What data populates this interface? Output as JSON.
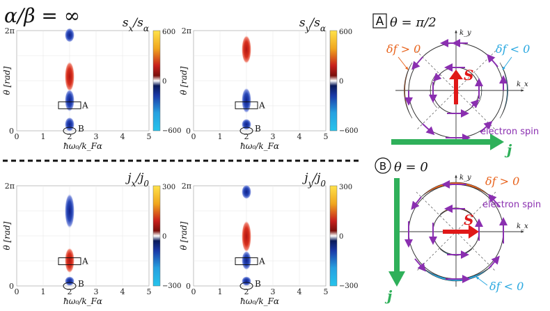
{
  "header": {
    "ratio_label": "α/β = ∞"
  },
  "colors": {
    "red": "#c8201c",
    "dark_red": "#7a0f0c",
    "orange": "#f0a61e",
    "yellow": "#ffe24a",
    "blue": "#1a3aa8",
    "navy": "#0a1a5a",
    "cyan": "#26c4ec",
    "orange_region": "#e8641e",
    "blue_region": "#2aa8e0",
    "purple": "#8a2fb0",
    "green": "#2fb05a",
    "spin_red": "#e01818"
  },
  "axes": {
    "theta_label": "θ [rad]",
    "x_label": "ħω₀/k_Fα",
    "x_ticks": [
      "0",
      "1",
      "2",
      "3",
      "4",
      "5"
    ],
    "y_ticks": [
      "0",
      "2π"
    ],
    "marker_a": "A",
    "marker_b": "B"
  },
  "chart_data": [
    {
      "type": "heatmap",
      "id": "sx",
      "title": "s_x/s_α",
      "title_main": "s",
      "title_sub": "x",
      "denom_main": "s",
      "denom_sub": "α",
      "xlim": [
        0,
        5
      ],
      "ylim": [
        0,
        6.2832
      ],
      "colorbar": {
        "min": -600,
        "max": 600,
        "ticks": [
          "600",
          "0",
          "−600"
        ]
      },
      "lobes": [
        {
          "y": 6.0,
          "half_height": 0.45,
          "sign": -1
        },
        {
          "y": 3.4,
          "half_height": 0.95,
          "sign": 1
        },
        {
          "y": 1.9,
          "half_height": 0.7,
          "sign": -1
        },
        {
          "y": 0.4,
          "half_height": 0.45,
          "sign": -1
        }
      ]
    },
    {
      "type": "heatmap",
      "id": "sy",
      "title": "s_y/s_α",
      "title_main": "s",
      "title_sub": "y",
      "denom_main": "s",
      "denom_sub": "α",
      "xlim": [
        0,
        5
      ],
      "ylim": [
        0,
        6.2832
      ],
      "colorbar": {
        "min": -600,
        "max": 600,
        "ticks": [
          "600",
          "0",
          "−600"
        ]
      },
      "lobes": [
        {
          "y": 5.1,
          "half_height": 0.9,
          "sign": 1
        },
        {
          "y": 1.9,
          "half_height": 0.8,
          "sign": -1
        },
        {
          "y": 0.4,
          "half_height": 0.35,
          "sign": -1
        }
      ]
    },
    {
      "type": "heatmap",
      "id": "jx",
      "title": "j_x/j_0",
      "title_main": "j",
      "title_sub": "x",
      "denom_main": "j",
      "denom_sub": "0",
      "xlim": [
        0,
        5
      ],
      "ylim": [
        0,
        6.2832
      ],
      "colorbar": {
        "min": -300,
        "max": 300,
        "ticks": [
          "300",
          "0",
          "−300"
        ]
      },
      "lobes": [
        {
          "y": 4.7,
          "half_height": 1.1,
          "sign": -1
        },
        {
          "y": 1.6,
          "half_height": 0.8,
          "sign": 1
        },
        {
          "y": 0.3,
          "half_height": 0.3,
          "sign": -1
        }
      ]
    },
    {
      "type": "heatmap",
      "id": "jy",
      "title": "j_y/j_0",
      "title_main": "j",
      "title_sub": "y",
      "denom_main": "j",
      "denom_sub": "0",
      "xlim": [
        0,
        5
      ],
      "ylim": [
        0,
        6.2832
      ],
      "colorbar": {
        "min": -300,
        "max": 300,
        "ticks": [
          "300",
          "0",
          "−300"
        ]
      },
      "lobes": [
        {
          "y": 5.9,
          "half_height": 0.45,
          "sign": -1
        },
        {
          "y": 3.1,
          "half_height": 1.0,
          "sign": 1
        },
        {
          "y": 1.6,
          "half_height": 0.6,
          "sign": -1
        },
        {
          "y": 0.3,
          "half_height": 0.3,
          "sign": -1
        }
      ]
    }
  ],
  "diagram_a": {
    "box_label": "A",
    "theta": "θ = π/2",
    "ky": "k_y",
    "kx": "k_x",
    "df_pos": "δf > 0",
    "df_neg": "δf < 0",
    "spin_symbol": "S",
    "spin_label": "electron spin",
    "current_label": "j"
  },
  "diagram_b": {
    "circle_label": "B",
    "theta": "θ = 0",
    "ky": "k_y",
    "kx": "k_x",
    "df_pos": "δf > 0",
    "df_neg": "δf < 0",
    "spin_symbol": "S",
    "spin_label": "electron spin",
    "current_label": "j"
  }
}
